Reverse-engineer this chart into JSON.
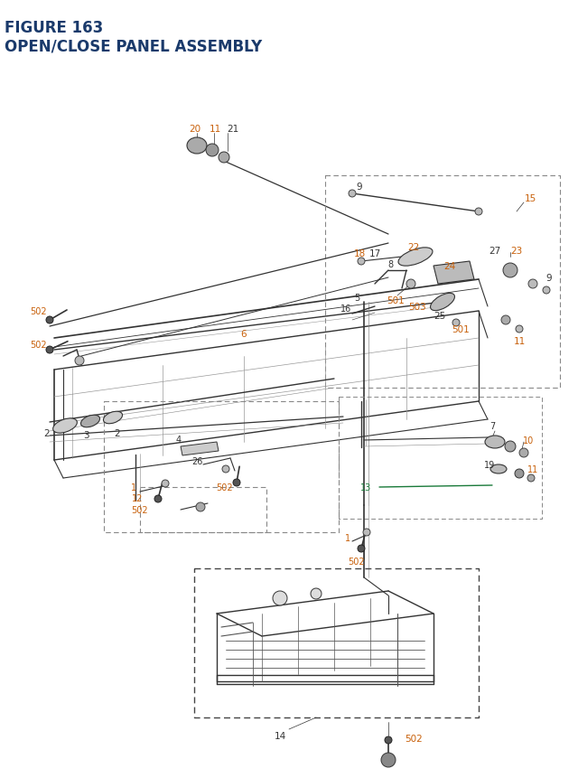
{
  "title_line1": "FIGURE 163",
  "title_line2": "OPEN/CLOSE PANEL ASSEMBLY",
  "title_color": "#1a3a6b",
  "bg_color": "#ffffff",
  "label_color_orange": "#c8600a",
  "label_color_dark": "#333333",
  "label_color_green": "#1a7a3a",
  "label_fontsize": 7.5,
  "title_fontsize1": 12,
  "title_fontsize2": 12
}
